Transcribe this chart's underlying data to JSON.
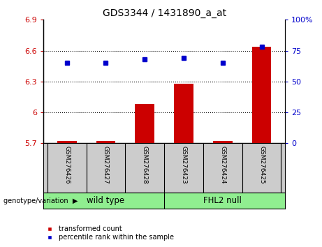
{
  "title": "GDS3344 / 1431890_a_at",
  "samples": [
    "GSM276426",
    "GSM276427",
    "GSM276428",
    "GSM276423",
    "GSM276424",
    "GSM276425"
  ],
  "transformed_counts": [
    5.72,
    5.72,
    6.08,
    6.28,
    5.72,
    6.64
  ],
  "percentile_ranks": [
    65,
    65,
    68,
    69,
    65,
    78
  ],
  "ylim_left": [
    5.7,
    6.9
  ],
  "ylim_right": [
    0,
    100
  ],
  "yticks_left": [
    5.7,
    6.0,
    6.3,
    6.6,
    6.9
  ],
  "ytick_labels_left": [
    "5.7",
    "6",
    "6.3",
    "6.6",
    "6.9"
  ],
  "yticks_right": [
    0,
    25,
    50,
    75,
    100
  ],
  "ytick_labels_right": [
    "0",
    "25",
    "50",
    "75",
    "100%"
  ],
  "hlines": [
    6.0,
    6.3,
    6.6
  ],
  "bar_color": "#cc0000",
  "dot_color": "#0000cc",
  "bar_bottom": 5.7,
  "group_bg_color": "#90ee90",
  "sample_bg_color": "#cccccc",
  "wild_type_indices": [
    0,
    1,
    2
  ],
  "fhl2_indices": [
    3,
    4,
    5
  ],
  "group_label_wild": "wild type",
  "group_label_fhl": "FHL2 null",
  "legend_items": [
    "transformed count",
    "percentile rank within the sample"
  ],
  "legend_colors": [
    "#cc0000",
    "#0000cc"
  ],
  "geno_label": "genotype/variation",
  "bar_width": 0.5
}
